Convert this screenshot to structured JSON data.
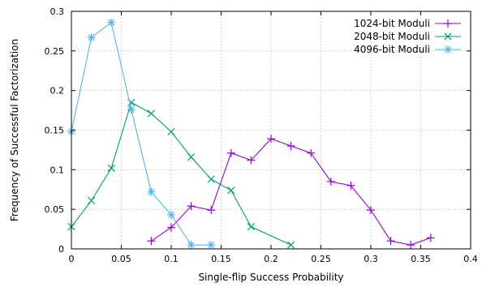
{
  "chart_data": {
    "type": "line",
    "title": "",
    "xlabel": "Single-flip Success Probability",
    "ylabel": "Frequency of Successful Factorization",
    "xlim": [
      0,
      0.4
    ],
    "ylim": [
      0,
      0.3
    ],
    "xticks": [
      0,
      0.05,
      0.1,
      0.15,
      0.2,
      0.25,
      0.3,
      0.35,
      0.4
    ],
    "xtick_labels": [
      "0",
      "0.05",
      "0.1",
      "0.15",
      "0.2",
      "0.25",
      "0.3",
      "0.35",
      "0.4"
    ],
    "yticks": [
      0,
      0.05,
      0.1,
      0.15,
      0.2,
      0.25,
      0.3
    ],
    "ytick_labels": [
      "0",
      "0.05",
      "0.1",
      "0.15",
      "0.2",
      "0.25",
      "0.3"
    ],
    "grid": true,
    "legend_position": "top-right",
    "series": [
      {
        "name": "1024-bit Moduli",
        "color": "#9400d3",
        "marker": "plus",
        "x": [
          0.08,
          0.1,
          0.12,
          0.14,
          0.16,
          0.18,
          0.2,
          0.22,
          0.24,
          0.26,
          0.28,
          0.3,
          0.32,
          0.34,
          0.36
        ],
        "y": [
          0.01,
          0.027,
          0.054,
          0.049,
          0.121,
          0.112,
          0.139,
          0.13,
          0.121,
          0.085,
          0.08,
          0.049,
          0.01,
          0.005,
          0.014
        ]
      },
      {
        "name": "2048-bit Moduli",
        "color": "#009e73",
        "marker": "cross",
        "x": [
          0.0,
          0.02,
          0.04,
          0.06,
          0.08,
          0.1,
          0.12,
          0.14,
          0.16,
          0.18,
          0.22
        ],
        "y": [
          0.028,
          0.061,
          0.102,
          0.185,
          0.171,
          0.148,
          0.116,
          0.088,
          0.074,
          0.028,
          0.005
        ]
      },
      {
        "name": "4096-bit Moduli",
        "color": "#56b4e9",
        "marker": "star",
        "x": [
          0.0,
          0.02,
          0.04,
          0.06,
          0.08,
          0.1,
          0.12,
          0.14
        ],
        "y": [
          0.148,
          0.267,
          0.286,
          0.176,
          0.072,
          0.043,
          0.005,
          0.005
        ]
      }
    ]
  }
}
